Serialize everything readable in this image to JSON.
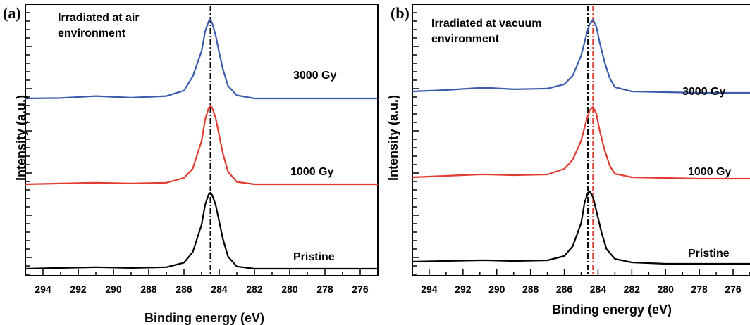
{
  "chart_data": [
    {
      "type": "line",
      "panel_label": "(a)",
      "annotation": [
        "Irradiated at air",
        "environment"
      ],
      "xlabel": "Binding energy (eV)",
      "ylabel": "Intensity (a.u.)",
      "xlim": [
        295,
        275
      ],
      "x_reversed": true,
      "x_ticks": [
        294,
        292,
        290,
        288,
        286,
        284,
        282,
        280,
        278,
        276
      ],
      "reference_lines": [
        {
          "x": 284.5,
          "color": "#000000",
          "style": "dash-dot"
        }
      ],
      "series": [
        {
          "label": "3000 Gy",
          "color": "#3b5bab",
          "offset": 2,
          "x": [
            295,
            293,
            291,
            289,
            287,
            286,
            285.5,
            285,
            284.8,
            284.6,
            284.5,
            284.4,
            284.2,
            284,
            283.8,
            283.5,
            283,
            282,
            280,
            278,
            275
          ],
          "y": [
            0.0,
            0.005,
            0.03,
            0.01,
            0.03,
            0.1,
            0.28,
            0.6,
            0.85,
            0.98,
            1.0,
            0.96,
            0.8,
            0.58,
            0.38,
            0.16,
            0.04,
            0.0,
            0.0,
            0.0,
            0.0
          ]
        },
        {
          "label": "1000 Gy",
          "color": "#e03c31",
          "offset": 1,
          "x": [
            295,
            293,
            291,
            289,
            287,
            286,
            285.5,
            285,
            284.8,
            284.6,
            284.5,
            284.4,
            284.2,
            284,
            283.8,
            283.5,
            283,
            282,
            280,
            278,
            275
          ],
          "y": [
            0.0,
            0.01,
            0.02,
            0.01,
            0.02,
            0.08,
            0.2,
            0.55,
            0.82,
            0.97,
            1.0,
            0.97,
            0.84,
            0.62,
            0.4,
            0.16,
            0.03,
            0.0,
            0.0,
            0.0,
            0.0
          ]
        },
        {
          "label": "Pristine",
          "color": "#000000",
          "offset": 0,
          "x": [
            295,
            293,
            291,
            289,
            287,
            286,
            285.5,
            285,
            284.8,
            284.6,
            284.5,
            284.4,
            284.2,
            284,
            283.8,
            283.5,
            283,
            282,
            280,
            278,
            275
          ],
          "y": [
            0.0,
            0.01,
            0.02,
            0.01,
            0.02,
            0.08,
            0.22,
            0.58,
            0.84,
            0.98,
            1.0,
            0.97,
            0.84,
            0.62,
            0.4,
            0.16,
            0.03,
            0.0,
            0.0,
            0.0,
            0.0
          ]
        }
      ]
    },
    {
      "type": "line",
      "panel_label": "(b)",
      "annotation": [
        "Irradiated at vacuum",
        "environment"
      ],
      "xlabel": "Binding energy (eV)",
      "ylabel": "Intensity (a.u.)",
      "xlim": [
        295,
        275
      ],
      "x_reversed": true,
      "x_ticks": [
        294,
        292,
        290,
        288,
        286,
        284,
        282,
        280,
        278,
        276
      ],
      "reference_lines": [
        {
          "x": 284.6,
          "color": "#000000",
          "style": "dash-dot"
        },
        {
          "x": 284.3,
          "color": "#e03c31",
          "style": "dash-dot"
        }
      ],
      "series": [
        {
          "label": "3000 Gy",
          "color": "#3b5bab",
          "offset": 2,
          "x": [
            295,
            293,
            291,
            290.5,
            289,
            287,
            286,
            285.5,
            285,
            284.7,
            284.5,
            284.3,
            284.1,
            283.9,
            283.6,
            283.3,
            283,
            282,
            280,
            278,
            275
          ],
          "y": [
            0.0,
            0.02,
            0.05,
            0.05,
            0.03,
            0.04,
            0.1,
            0.22,
            0.5,
            0.78,
            0.94,
            1.0,
            0.9,
            0.68,
            0.4,
            0.18,
            0.06,
            0.0,
            -0.01,
            -0.02,
            -0.02
          ]
        },
        {
          "label": "1000 Gy",
          "color": "#e03c31",
          "offset": 1,
          "x": [
            295,
            293,
            291,
            290.5,
            289,
            287,
            286,
            285.5,
            285,
            284.7,
            284.5,
            284.3,
            284.1,
            283.9,
            283.6,
            283.3,
            283,
            282,
            280,
            278,
            275
          ],
          "y": [
            0.0,
            0.02,
            0.04,
            0.04,
            0.03,
            0.04,
            0.12,
            0.25,
            0.52,
            0.8,
            0.95,
            1.0,
            0.9,
            0.66,
            0.38,
            0.16,
            0.05,
            0.0,
            -0.01,
            -0.02,
            -0.02
          ]
        },
        {
          "label": "Pristine",
          "color": "#000000",
          "offset": 0,
          "x": [
            295,
            293,
            291,
            290.5,
            289,
            287,
            286,
            285.5,
            285,
            284.8,
            284.6,
            284.5,
            284.3,
            284.1,
            283.8,
            283.5,
            283,
            282,
            280,
            278,
            275
          ],
          "y": [
            0.0,
            0.01,
            0.02,
            0.02,
            0.01,
            0.02,
            0.08,
            0.22,
            0.55,
            0.84,
            0.98,
            1.0,
            0.92,
            0.72,
            0.42,
            0.18,
            0.04,
            -0.01,
            -0.03,
            -0.03,
            -0.03
          ]
        }
      ]
    }
  ]
}
